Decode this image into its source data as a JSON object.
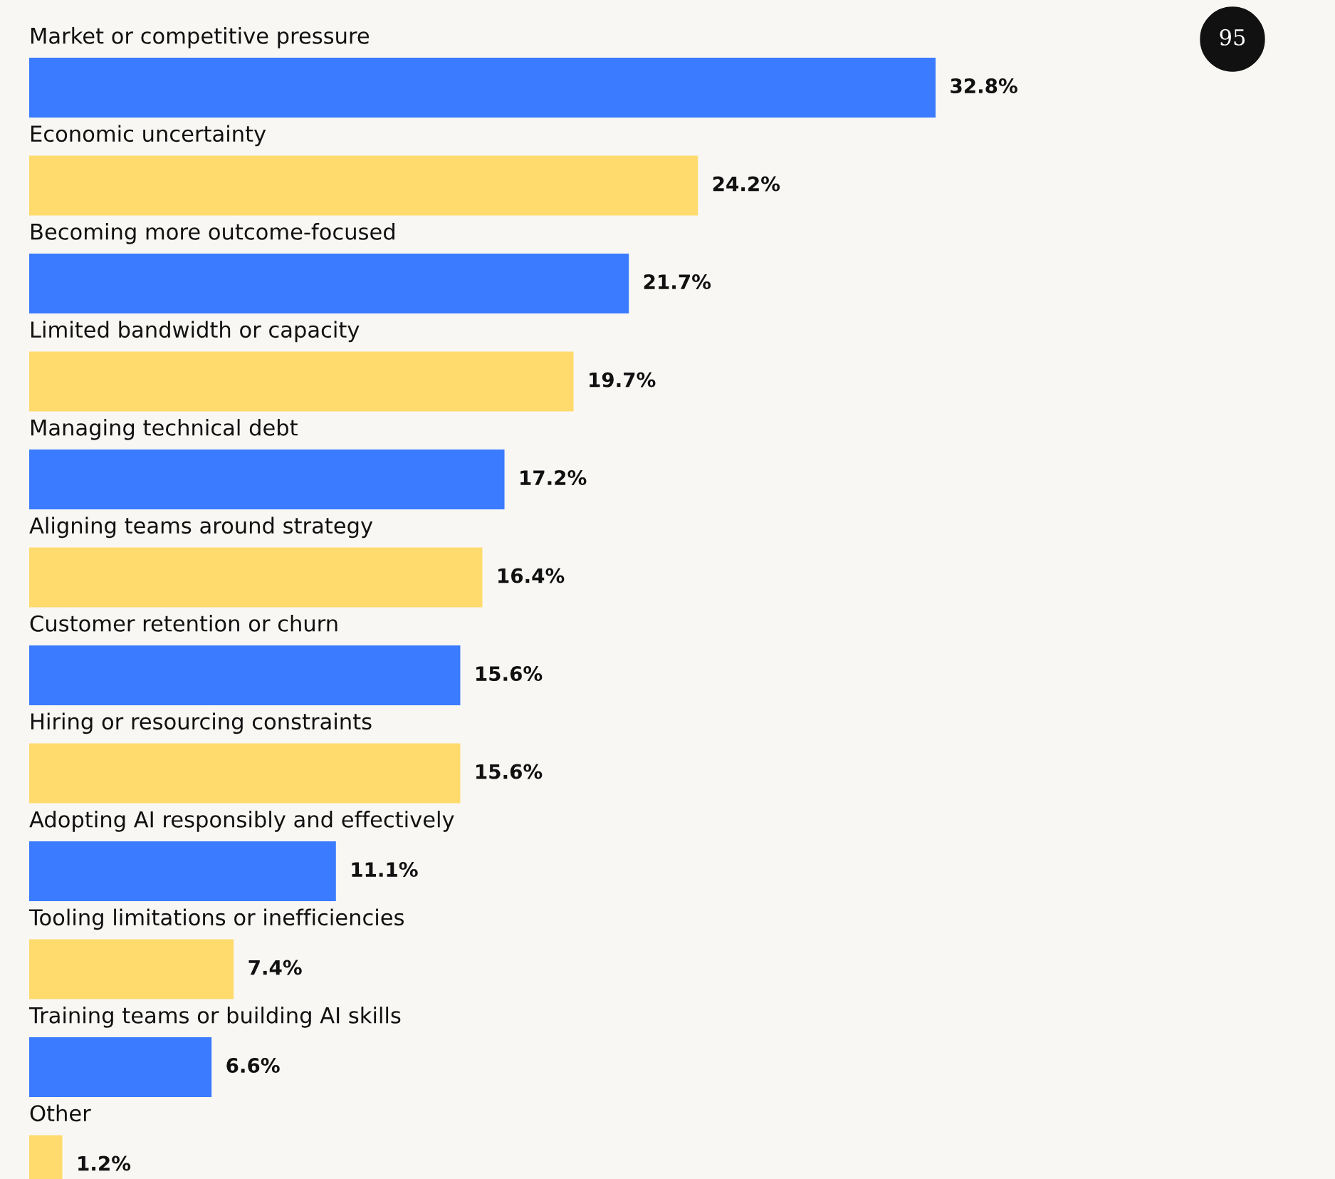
{
  "chart_data": {
    "type": "bar",
    "orientation": "horizontal",
    "categories": [
      "Market or competitive pressure",
      "Economic uncertainty",
      "Becoming more outcome-focused",
      "Limited bandwidth or capacity",
      "Managing technical debt",
      "Aligning teams around strategy",
      "Customer retention or churn",
      "Hiring or resourcing constraints",
      "Adopting AI responsibly and effectively",
      "Tooling limitations or inefficiencies",
      "Training teams or building AI skills",
      "Other"
    ],
    "values": [
      32.8,
      24.2,
      21.7,
      19.7,
      17.2,
      16.4,
      15.6,
      15.6,
      11.1,
      7.4,
      6.6,
      1.2
    ],
    "colors": [
      "#3a7bff",
      "#ffdb6e",
      "#3a7bff",
      "#ffdb6e",
      "#3a7bff",
      "#ffdb6e",
      "#3a7bff",
      "#ffdb6e",
      "#3a7bff",
      "#ffdb6e",
      "#3a7bff",
      "#ffdb6e"
    ],
    "value_labels": [
      "32.8%",
      "24.2%",
      "21.7%",
      "19.7%",
      "17.2%",
      "16.4%",
      "15.6%",
      "15.6%",
      "11.1%",
      "7.4%",
      "6.6%",
      "1.2%"
    ],
    "annotations": [
      "95"
    ],
    "legend": false,
    "tick_labels": false
  }
}
